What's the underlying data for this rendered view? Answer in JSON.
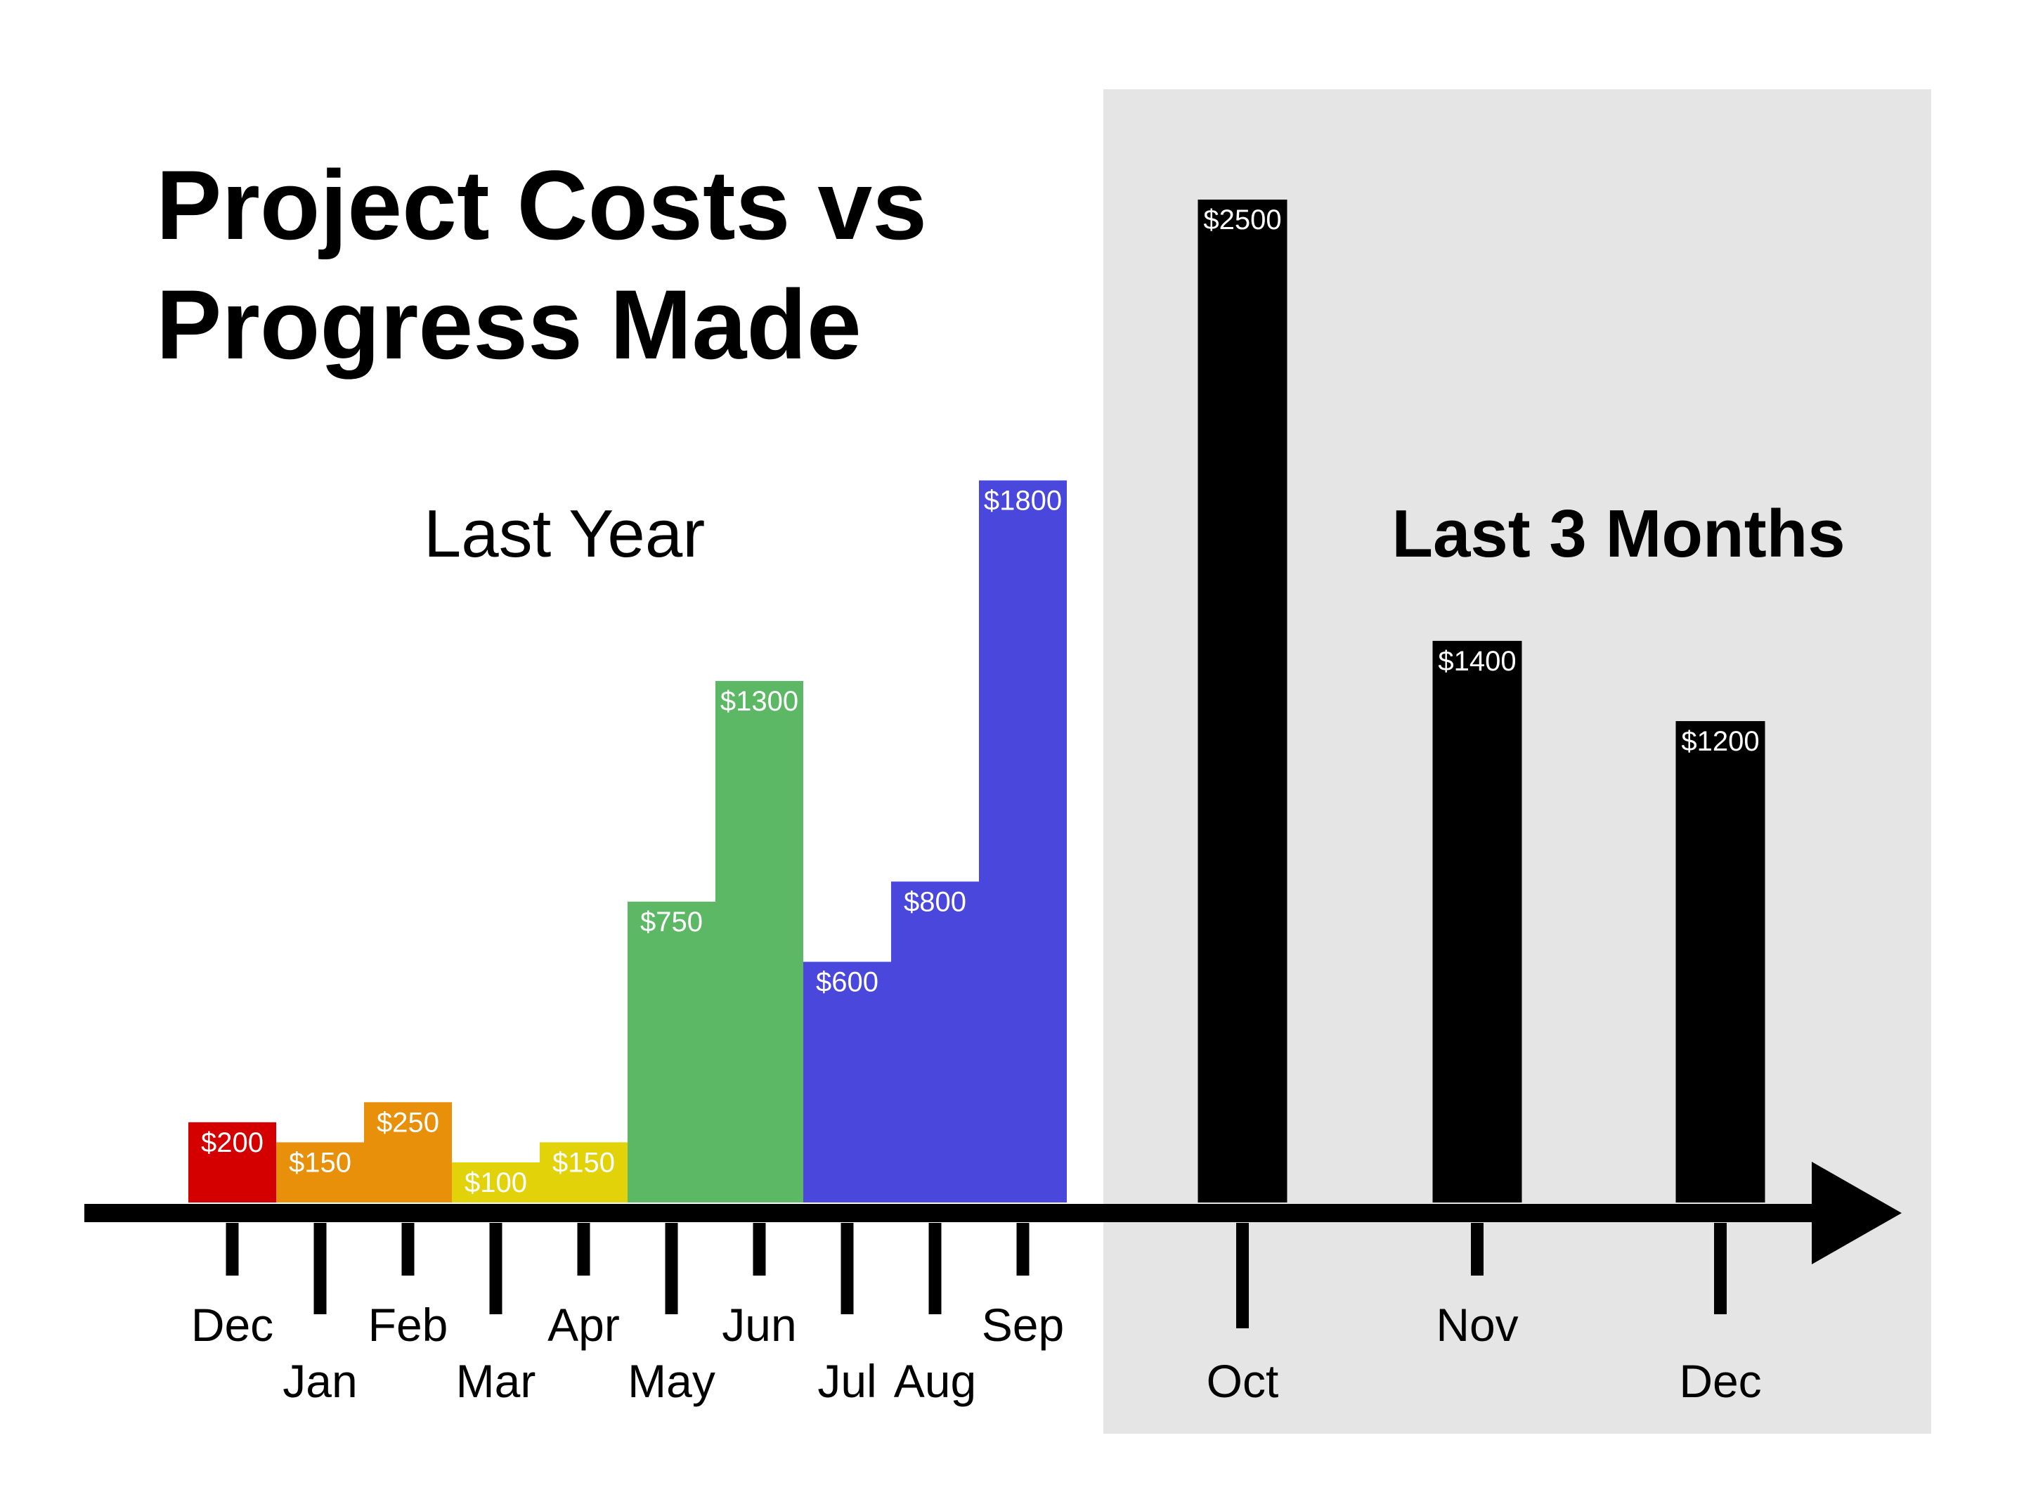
{
  "title_lines": [
    "Project Costs vs",
    "Progress Made"
  ],
  "sections": {
    "last_year_label": "Last Year",
    "recent_label": "Last 3 Months"
  },
  "colors": {
    "highlight_background": "#e5e5e5",
    "axis": "#000000",
    "recent_bars": "#000000"
  },
  "chart_data": {
    "type": "bar",
    "title": "Project Costs vs Progress Made",
    "xlabel": "",
    "ylabel": "",
    "ylim": [
      0,
      2500
    ],
    "grid": false,
    "legend": "none",
    "series": [
      {
        "name": "Last Year",
        "categories": [
          "Dec",
          "Jan",
          "Feb",
          "Mar",
          "Apr",
          "May",
          "Jun",
          "Jul",
          "Aug",
          "Sep"
        ],
        "values": [
          200,
          150,
          250,
          100,
          150,
          750,
          1300,
          600,
          800,
          1800
        ],
        "value_labels": [
          "$200",
          "$150",
          "$250",
          "$100",
          "$150",
          "$750",
          "$1300",
          "$600",
          "$800",
          "$1800"
        ],
        "colors": [
          "#d40000",
          "#e8900a",
          "#e8900a",
          "#e2d20a",
          "#e2d20a",
          "#5cb864",
          "#5cb864",
          "#4a47dc",
          "#4a47dc",
          "#4a47dc"
        ]
      },
      {
        "name": "Last 3 Months",
        "categories": [
          "Oct",
          "Nov",
          "Dec"
        ],
        "values": [
          2500,
          1400,
          1200
        ],
        "value_labels": [
          "$2500",
          "$1400",
          "$1200"
        ],
        "colors": [
          "#000000",
          "#000000",
          "#000000"
        ]
      }
    ]
  }
}
